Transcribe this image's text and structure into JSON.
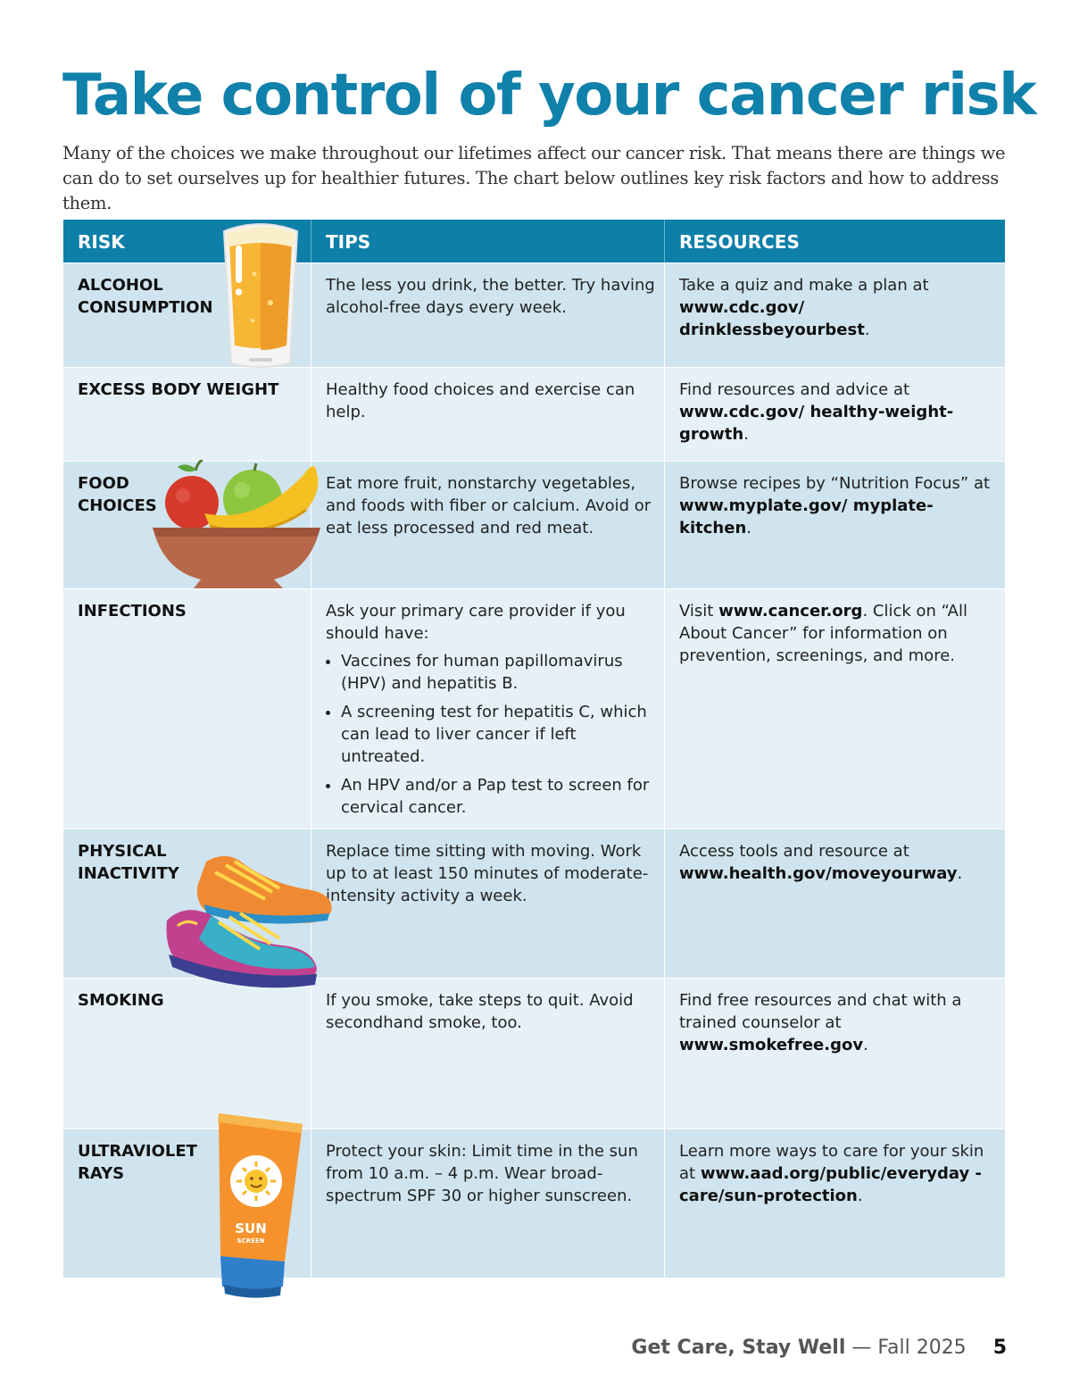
{
  "title": "Take control of your cancer risk",
  "intro": "Many of the choices we make throughout our lifetimes affect our cancer risk. That means there are things we can do to set ourselves up for healthier futures. The chart below outlines key risk factors and how to address them.",
  "table": {
    "headers": {
      "risk": "RISK",
      "tips": "TIPS",
      "resources": "RESOURCES"
    },
    "rows": [
      {
        "risk": "ALCOHOL\nCONSUMPTION",
        "tip": "The less you drink, the better. Try having alcohol-free days every week.",
        "res_pre": "Take a quiz and make a plan at ",
        "res_link": "www.cdc.gov/ drinklessbeyourbest",
        "res_post": ".",
        "icon": "beer-glass-icon"
      },
      {
        "risk": "EXCESS BODY WEIGHT",
        "tip": "Healthy food choices and exercise can help.",
        "res_pre": "Find resources and advice at ",
        "res_link": "www.cdc.gov/ healthy-weight-growth",
        "res_post": "."
      },
      {
        "risk": "FOOD\nCHOICES",
        "tip": "Eat more fruit, nonstarchy vegetables, and foods with fiber or calcium. Avoid or eat less processed and red meat.",
        "res_pre": "Browse recipes by “Nutrition Focus” at ",
        "res_link": "www.myplate.gov/ myplate-kitchen",
        "res_post": ".",
        "icon": "fruit-bowl-icon"
      },
      {
        "risk": "INFECTIONS",
        "tip": "Ask your primary care provider if you should have:",
        "bullets": [
          "Vaccines for human papillomavirus (HPV) and hepatitis B.",
          "A screening test for hepatitis C, which can lead to liver cancer if left untreated.",
          "An HPV and/or a Pap test to screen for cervical cancer."
        ],
        "res_pre": "Visit ",
        "res_link": "www.cancer.org",
        "res_post": ". Click on “All About Cancer” for information on prevention, screenings, and more."
      },
      {
        "risk": "PHYSICAL\nINACTIVITY",
        "tip": "Replace time sitting with moving. Work up to at least 150 minutes of moderate-intensity activity a week.",
        "res_pre": "Access tools and resource at ",
        "res_link": "www.health.gov/moveyourway",
        "res_post": ".",
        "icon": "sneakers-icon"
      },
      {
        "risk": "SMOKING",
        "tip": "If you smoke, take steps to quit. Avoid secondhand smoke, too.",
        "res_pre": "Find free resources and chat with a trained counselor at ",
        "res_link": "www.smokefree.gov",
        "res_post": "."
      },
      {
        "risk": "ULTRAVIOLET\nRAYS",
        "tip": "Protect your skin: Limit time in the sun from 10 a.m. – 4 p.m. Wear broad-spectrum SPF 30 or higher sunscreen.",
        "res_pre": "Learn more ways to care for your skin at ",
        "res_link": "www.aad.org/public/everyday -care/sun-protection",
        "res_post": ".",
        "icon": "sunscreen-tube-icon",
        "tube_text": {
          "line1": "SUN",
          "line2": "SCREEN"
        }
      }
    ]
  },
  "footer": {
    "magazine": "Get Care, Stay Well",
    "separator": " — ",
    "issue": "Fall 2025",
    "page": "5"
  }
}
